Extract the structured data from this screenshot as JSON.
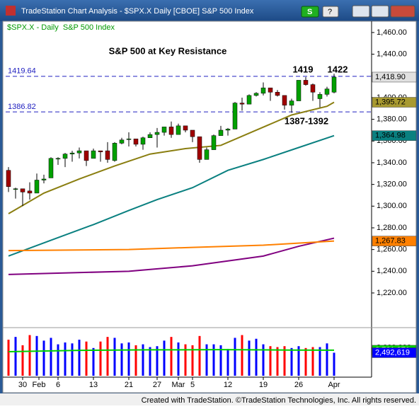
{
  "window": {
    "title": "TradeStation Chart Analysis - $SPX.X Daily [CBOE] S&P 500 Index",
    "buttons": [
      "S",
      "?"
    ]
  },
  "footer": "Created with TradeStation. ©TradeStation Technologies, Inc. All rights reserved.",
  "chart_data": {
    "type": "candlestick",
    "title": "S&P 500 at Key Resistance",
    "subtitle": "$SPX.X - Daily  S&P 500 Index",
    "open": [
      1333,
      1316,
      1316,
      1314,
      1312,
      1324,
      1326,
      1344,
      1344,
      1348,
      1349,
      1351,
      1344,
      1351,
      1351,
      1342,
      1358,
      1362,
      1362,
      1357,
      1363,
      1366,
      1368,
      1373,
      1366,
      1374,
      1370,
      1364,
      1343,
      1352,
      1365,
      1370,
      1371,
      1395,
      1394,
      1402,
      1404,
      1409,
      1405,
      1402,
      1393,
      1397,
      1416,
      1412,
      1399,
      1403,
      1405
    ],
    "high": [
      1336,
      1317,
      1316,
      1322,
      1330,
      1329,
      1345,
      1345,
      1349,
      1351,
      1354,
      1351,
      1353,
      1351,
      1359,
      1359,
      1363,
      1368,
      1362,
      1364,
      1368,
      1372,
      1373,
      1378,
      1376,
      1374,
      1370,
      1364,
      1354,
      1366,
      1374,
      1372,
      1396,
      1400,
      1403,
      1405,
      1414,
      1409,
      1407,
      1402,
      1399,
      1416,
      1419,
      1413,
      1405,
      1410,
      1422
    ],
    "low": [
      1313,
      1307,
      1300,
      1306,
      1312,
      1321,
      1326,
      1338,
      1336,
      1341,
      1344,
      1337,
      1344,
      1341,
      1340,
      1341,
      1357,
      1355,
      1355,
      1352,
      1363,
      1354,
      1365,
      1363,
      1366,
      1368,
      1359,
      1340,
      1343,
      1352,
      1365,
      1365,
      1371,
      1388,
      1394,
      1401,
      1402,
      1397,
      1401,
      1389,
      1386,
      1397,
      1411,
      1397,
      1391,
      1401,
      1404
    ],
    "close": [
      1318,
      1316,
      1313,
      1312,
      1324,
      1325,
      1344,
      1344,
      1348,
      1349,
      1351,
      1342,
      1351,
      1350,
      1343,
      1358,
      1361,
      1362,
      1357,
      1363,
      1366,
      1368,
      1373,
      1366,
      1374,
      1370,
      1364,
      1343,
      1352,
      1365,
      1370,
      1371,
      1395,
      1394,
      1402,
      1404,
      1409,
      1405,
      1402,
      1393,
      1397,
      1416,
      1412,
      1405,
      1403,
      1408,
      1418.9
    ],
    "up_color": "#00a000",
    "down_color": "#a00000",
    "xlim": [
      -0.4,
      51.3
    ],
    "xticks": [
      {
        "value": 2,
        "label": "30"
      },
      {
        "value": 4.3,
        "label": "Feb"
      },
      {
        "value": 7,
        "label": "6"
      },
      {
        "value": 12,
        "label": "13"
      },
      {
        "value": 17,
        "label": "21"
      },
      {
        "value": 21,
        "label": "27"
      },
      {
        "value": 24,
        "label": "Mar"
      },
      {
        "value": 26,
        "label": "5"
      },
      {
        "value": 31,
        "label": "12"
      },
      {
        "value": 36,
        "label": "19"
      },
      {
        "value": 41,
        "label": "26"
      },
      {
        "value": 46,
        "label": "Apr"
      }
    ],
    "ylim": [
      1190,
      1470.4
    ],
    "yticks": [
      {
        "value": 1220,
        "label": "1,220.00"
      },
      {
        "value": 1240,
        "label": "1,240.00"
      },
      {
        "value": 1260,
        "label": "1,260.00"
      },
      {
        "value": 1280,
        "label": "1,280.00"
      },
      {
        "value": 1300,
        "label": "1,300.00"
      },
      {
        "value": 1320,
        "label": "1,320.00"
      },
      {
        "value": 1340,
        "label": "1,340.00"
      },
      {
        "value": 1360,
        "label": "1,360.00"
      },
      {
        "value": 1380,
        "label": "1,380.00"
      },
      {
        "value": 1400,
        "label": "1,400.00"
      },
      {
        "value": 1420,
        "label": "1,420.00"
      },
      {
        "value": 1440,
        "label": "1,440.00"
      },
      {
        "value": 1460,
        "label": "1,460.00"
      }
    ],
    "levels": [
      1419.64,
      1386.82
    ],
    "level_color": "#2020c0",
    "annotations": [
      "1419",
      "1422",
      "1387-1392"
    ],
    "series": [
      {
        "color": "#8a7e10",
        "x": [
          0,
          5,
          10,
          15,
          20,
          25,
          30,
          35,
          40,
          45,
          46
        ],
        "values": [
          1293,
          1312,
          1325,
          1337,
          1348,
          1353,
          1356,
          1370,
          1384,
          1392,
          1395.72
        ]
      },
      {
        "color": "#0a8080",
        "x": [
          0,
          7,
          12,
          17,
          21,
          26,
          31,
          36,
          41,
          46
        ],
        "values": [
          1254,
          1271,
          1283,
          1296,
          1306,
          1317,
          1333,
          1343,
          1354,
          1364.98
        ]
      },
      {
        "color": "#800080",
        "x": [
          0,
          17,
          26,
          36,
          41,
          46
        ],
        "values": [
          1237,
          1240,
          1245,
          1254,
          1263,
          1270.5
        ]
      },
      {
        "color": "#ff8000",
        "x": [
          0,
          17,
          26,
          36,
          46
        ],
        "values": [
          1259,
          1260,
          1262,
          1264,
          1267.83
        ]
      }
    ],
    "last_values": [
      {
        "value": 1418.9,
        "label": "1,418.90",
        "color": "#e0e0e0",
        "text_color": "#000000"
      },
      {
        "value": 1395.72,
        "label": "1,395.72",
        "color": "#a89a30",
        "text_color": "#000000"
      },
      {
        "value": 1364.98,
        "label": "1,364.98",
        "color": "#0a8080",
        "text_color": "#000000"
      },
      {
        "value": 1267.83,
        "label": "1,267.83",
        "color": "#ff8000",
        "text_color": "#000000"
      }
    ],
    "volume": {
      "values": [
        3900000,
        4200000,
        3300000,
        4400000,
        4300000,
        3800000,
        4100000,
        3400000,
        3600000,
        3500000,
        3900000,
        3700000,
        3000000,
        3700000,
        4200000,
        4100000,
        3500000,
        3600000,
        3300000,
        3400000,
        3100000,
        3200000,
        3800000,
        4200000,
        3600000,
        3400000,
        3300000,
        4300000,
        3400000,
        3400000,
        3300000,
        2900000,
        4100000,
        4400000,
        3800000,
        4000000,
        3400000,
        3200000,
        3100000,
        3200000,
        3000000,
        3200000,
        3000000,
        3100000,
        3100000,
        3500000,
        2492619
      ],
      "up_color": "#0000ff",
      "down_color": "#ff0000",
      "ylim": [
        0,
        4900000
      ],
      "yticks": [
        {
          "value": 3000000,
          "label": "3,000,000"
        }
      ],
      "average": {
        "color": "#00d000",
        "x": [
          0,
          10,
          20,
          30,
          40,
          46
        ],
        "values": [
          2600000,
          2750000,
          2800000,
          2820000,
          2780000,
          2761971
        ]
      },
      "boxes": [
        {
          "value": 2761971,
          "label": "2,761,971",
          "color": "#00d000",
          "text_color": "#ffffff"
        },
        {
          "value": 2492619,
          "label": "2,492,619",
          "color": "#0000ff",
          "text_color": "#ffffff"
        }
      ]
    }
  }
}
